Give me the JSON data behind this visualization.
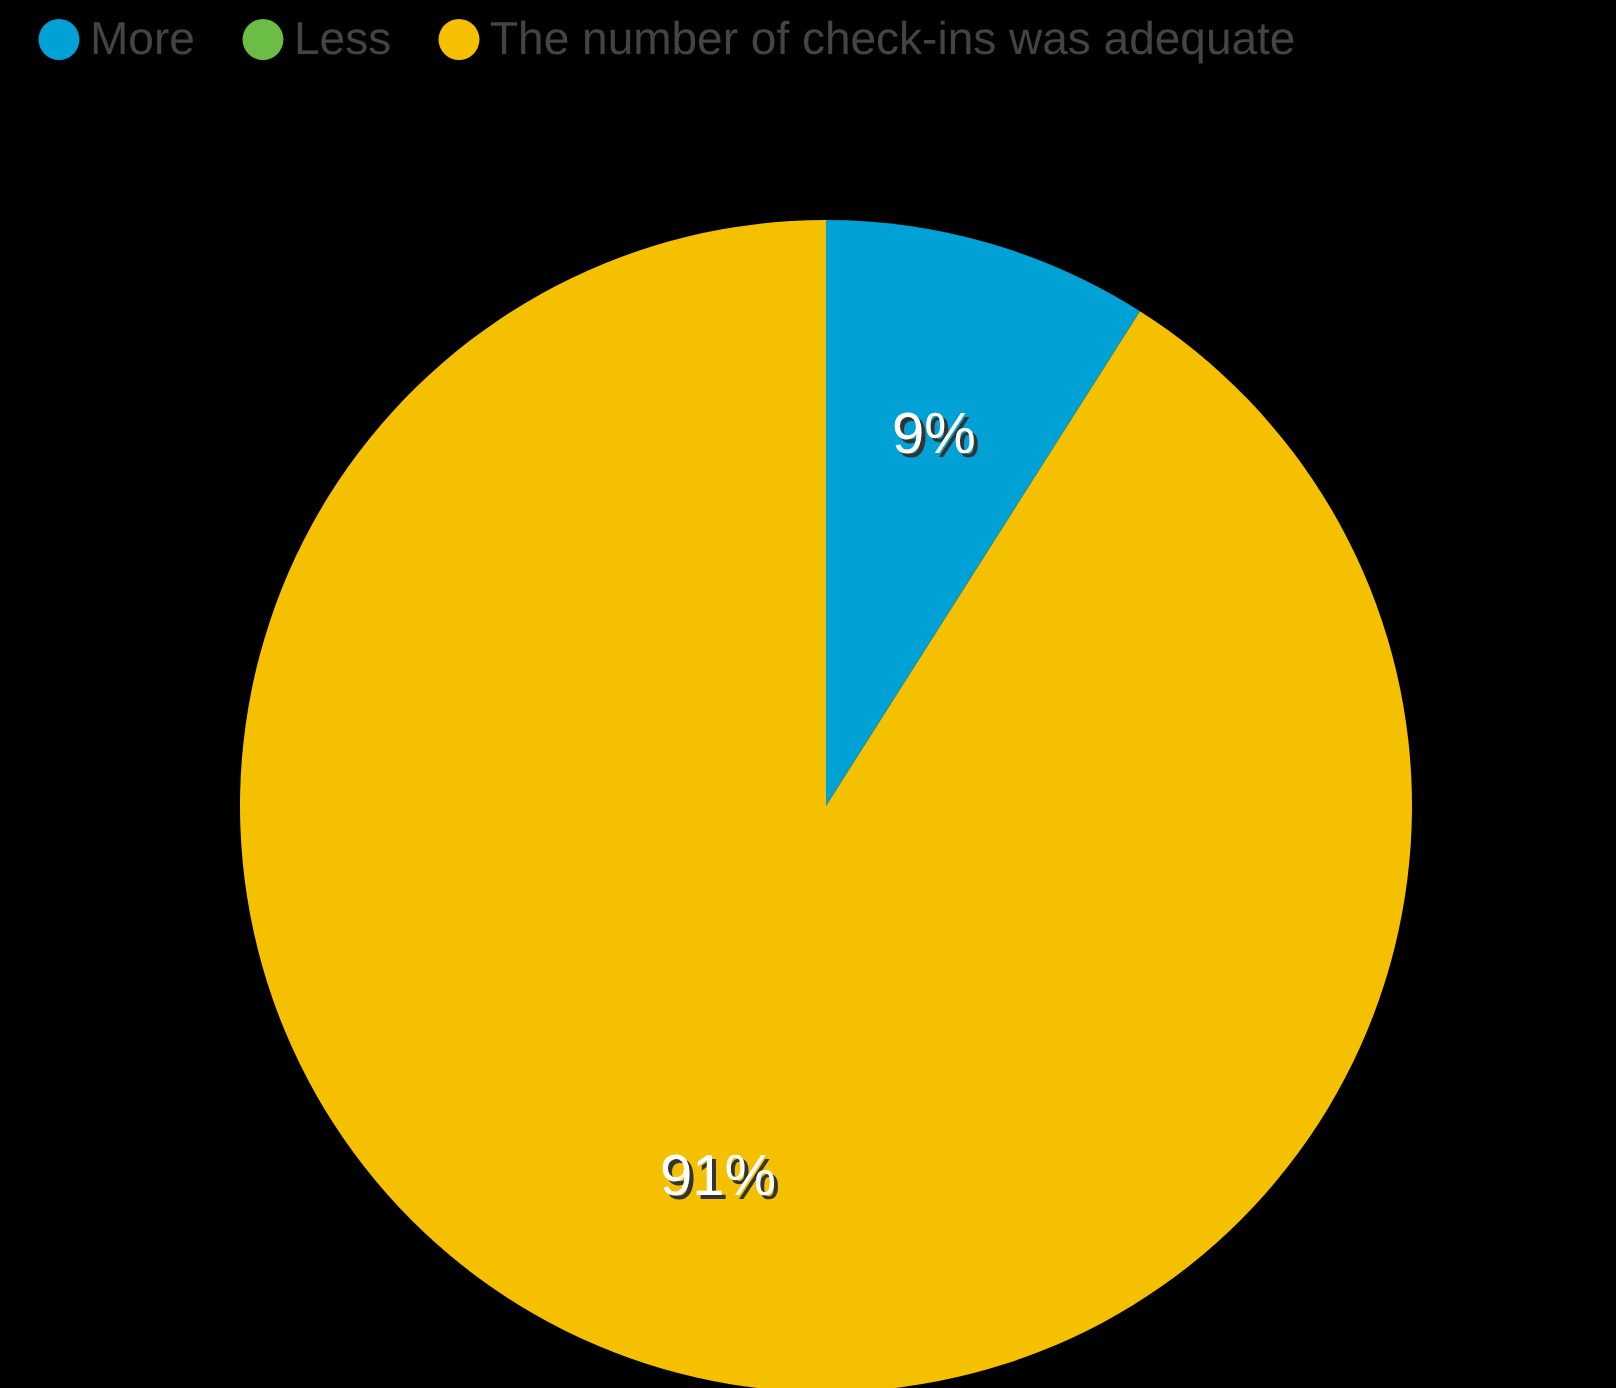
{
  "chart_data": {
    "type": "pie",
    "categories": [
      "More",
      "Less",
      "The number of check-ins was adequate"
    ],
    "values": [
      9,
      0,
      91
    ],
    "colors": [
      "#00a2d6",
      "#6bbd45",
      "#f5c000"
    ],
    "value_labels": [
      "9%",
      null,
      "91%"
    ],
    "legend": "top left"
  }
}
